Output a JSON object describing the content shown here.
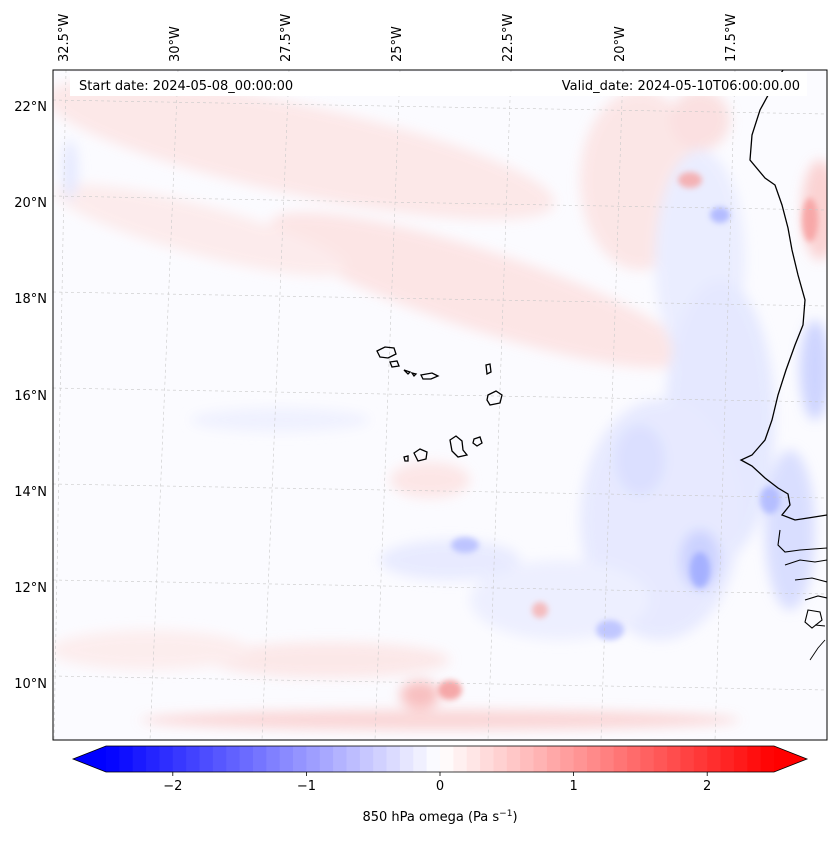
{
  "header": {
    "start_label": "Start date: 2024-05-08_00:00:00",
    "valid_label": "Valid_date: 2024-05-10T06:00:00.00"
  },
  "map": {
    "lon_labels": [
      "32.5°W",
      "30°W",
      "27.5°W",
      "25°W",
      "22.5°W",
      "20°W",
      "17.5°W"
    ],
    "lat_labels": [
      "22°N",
      "20°N",
      "18°N",
      "16°N",
      "14°N",
      "12°N",
      "10°N"
    ],
    "lat_ticks_deg": [
      22,
      20,
      18,
      16,
      14,
      12,
      10
    ],
    "lon_ticks_deg": [
      -32.5,
      -30,
      -27.5,
      -25,
      -22.5,
      -20,
      -17.5
    ]
  },
  "colorbar": {
    "label_prefix": "850 hPa omega (Pa s",
    "label_exp": "−1",
    "label_suffix": ")",
    "tick_labels": [
      "−2",
      "−1",
      "0",
      "1",
      "2"
    ],
    "tick_values": [
      -2,
      -1,
      0,
      1,
      2
    ],
    "min": -2.5,
    "max": 2.5,
    "colormap": "bwr",
    "color_low": "#0000ff",
    "color_mid": "#ffffff",
    "color_high": "#ff0000",
    "extend": "both"
  }
}
